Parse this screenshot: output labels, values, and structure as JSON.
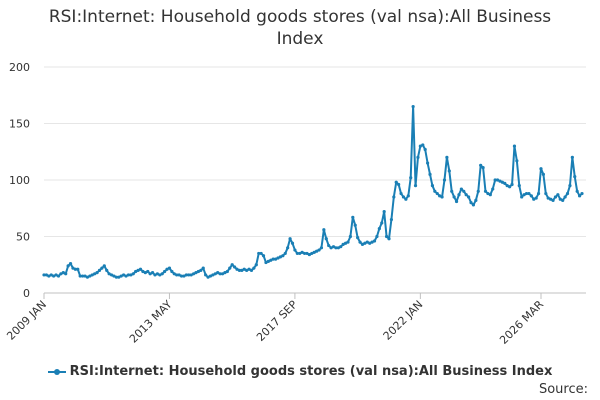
{
  "chart_data": {
    "type": "line",
    "title_lines": [
      "RSI:Internet: Household goods stores (val nsa):All Business",
      "Index"
    ],
    "xlabel": "",
    "ylabel": "",
    "ylim": [
      0,
      200
    ],
    "yticks": [
      0,
      50,
      100,
      150,
      200
    ],
    "x_tick_labels": [
      "2009 JAN",
      "2013 MAY",
      "2017 SEP",
      "2022 JAN",
      "2026 MAR"
    ],
    "x_tick_indices": [
      0,
      52,
      104,
      156,
      206
    ],
    "grid": "horizontal",
    "legend_position": "bottom",
    "series": [
      {
        "name": "RSI:Internet: Household goods stores (val nsa):All Business Index",
        "color": "#1a7fb5",
        "values": [
          16,
          16,
          15,
          16,
          15,
          16,
          15,
          17,
          18,
          17,
          24,
          26,
          22,
          21,
          21,
          15,
          15,
          15,
          14,
          15,
          16,
          17,
          18,
          20,
          22,
          24,
          20,
          17,
          16,
          15,
          14,
          14,
          15,
          16,
          15,
          16,
          16,
          17,
          19,
          20,
          21,
          19,
          18,
          19,
          17,
          18,
          16,
          17,
          16,
          17,
          19,
          21,
          22,
          19,
          17,
          16,
          16,
          15,
          15,
          16,
          16,
          16,
          17,
          18,
          19,
          20,
          22,
          16,
          14,
          15,
          16,
          17,
          18,
          17,
          17,
          18,
          19,
          22,
          25,
          23,
          21,
          20,
          20,
          21,
          20,
          21,
          20,
          22,
          25,
          35,
          35,
          33,
          27,
          28,
          29,
          30,
          30,
          31,
          32,
          33,
          35,
          40,
          48,
          44,
          38,
          35,
          35,
          36,
          35,
          35,
          34,
          35,
          36,
          37,
          38,
          40,
          56,
          48,
          42,
          40,
          41,
          40,
          40,
          41,
          43,
          44,
          45,
          50,
          67,
          60,
          49,
          45,
          43,
          44,
          45,
          44,
          45,
          46,
          50,
          57,
          62,
          72,
          50,
          48,
          65,
          85,
          98,
          96,
          88,
          85,
          83,
          86,
          102,
          165,
          95,
          120,
          130,
          131,
          127,
          115,
          105,
          95,
          90,
          88,
          86,
          85,
          100,
          120,
          108,
          90,
          85,
          81,
          87,
          92,
          90,
          87,
          85,
          80,
          78,
          82,
          90,
          113,
          111,
          90,
          88,
          87,
          92,
          100,
          100,
          99,
          98,
          97,
          95,
          94,
          96,
          130,
          117,
          95,
          85,
          87,
          88,
          88,
          86,
          83,
          84,
          88,
          110,
          105,
          88,
          84,
          83,
          82,
          85,
          87,
          83,
          82,
          85,
          88,
          95,
          120,
          103,
          90,
          86,
          88
        ]
      }
    ]
  },
  "legend": {
    "label": "RSI:Internet: Household goods stores (val nsa):All Business Index"
  },
  "source": {
    "label": "Source:"
  }
}
